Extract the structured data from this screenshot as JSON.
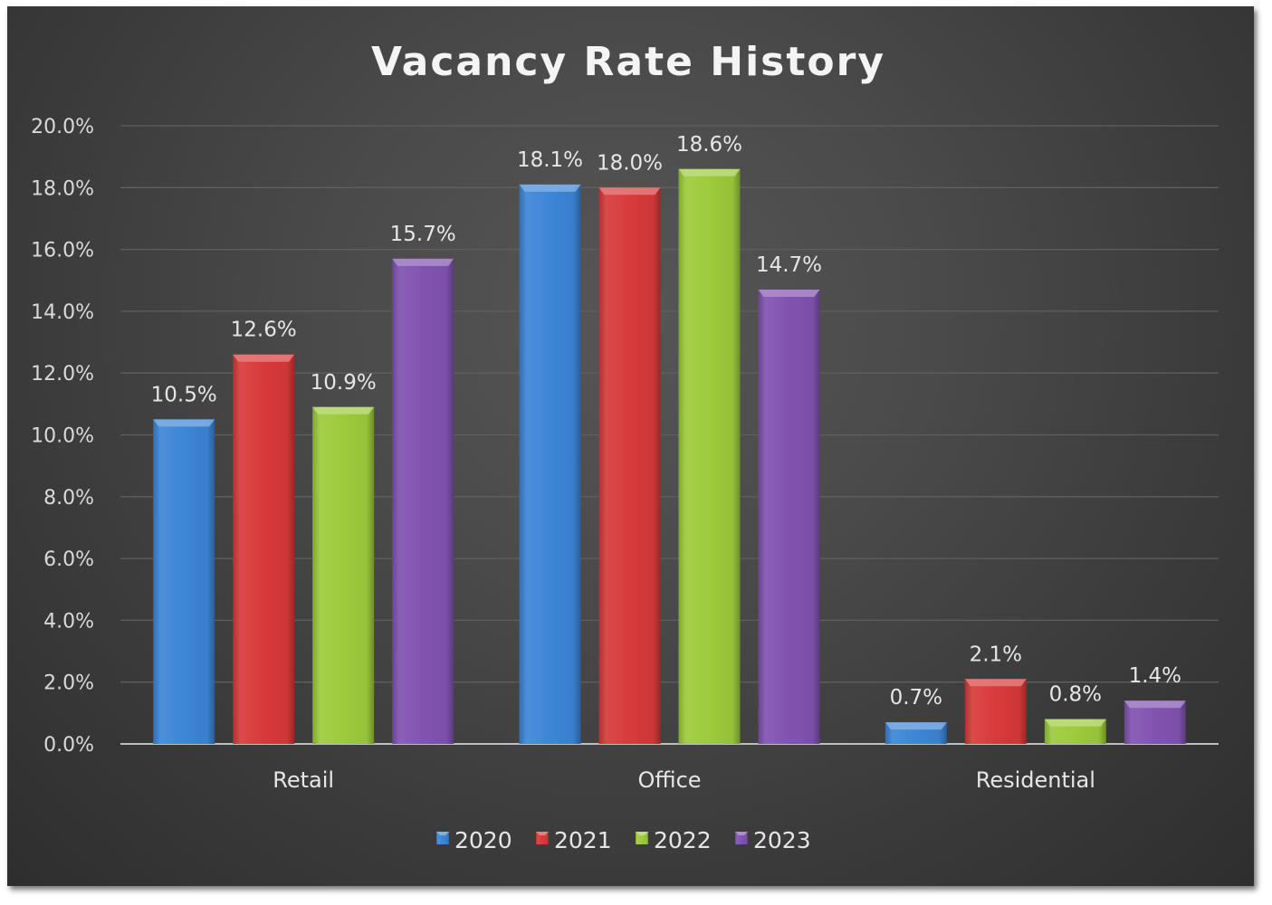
{
  "chart_data": {
    "type": "bar",
    "title": "Vacancy Rate History",
    "xlabel": "",
    "ylabel": "",
    "categories": [
      "Retail",
      "Office",
      "Residential"
    ],
    "series": [
      {
        "name": "2020",
        "values": [
          10.5,
          18.1,
          0.7
        ],
        "color": "#3d85d6",
        "labels": [
          "10.5%",
          "18.1%",
          "0.7%"
        ]
      },
      {
        "name": "2021",
        "values": [
          12.6,
          18.0,
          2.1
        ],
        "color": "#d83a3a",
        "labels": [
          "12.6%",
          "18.0%",
          "2.1%"
        ]
      },
      {
        "name": "2022",
        "values": [
          10.9,
          18.6,
          0.8
        ],
        "color": "#9ccb3b",
        "labels": [
          "10.9%",
          "18.6%",
          "0.8%"
        ]
      },
      {
        "name": "2023",
        "values": [
          15.7,
          14.7,
          1.4
        ],
        "color": "#8153b0",
        "labels": [
          "15.7%",
          "14.7%",
          "1.4%"
        ]
      }
    ],
    "ylim": [
      0,
      20
    ],
    "yticks": [
      0,
      2,
      4,
      6,
      8,
      10,
      12,
      14,
      16,
      18,
      20
    ],
    "ytick_labels": [
      "0.0%",
      "2.0%",
      "4.0%",
      "6.0%",
      "8.0%",
      "10.0%",
      "12.0%",
      "14.0%",
      "16.0%",
      "18.0%",
      "20.0%"
    ],
    "grid": true,
    "legend_position": "bottom",
    "background": "#474747",
    "gridline_color": "#5f5f5f",
    "axis_color": "#bfbfbf"
  }
}
